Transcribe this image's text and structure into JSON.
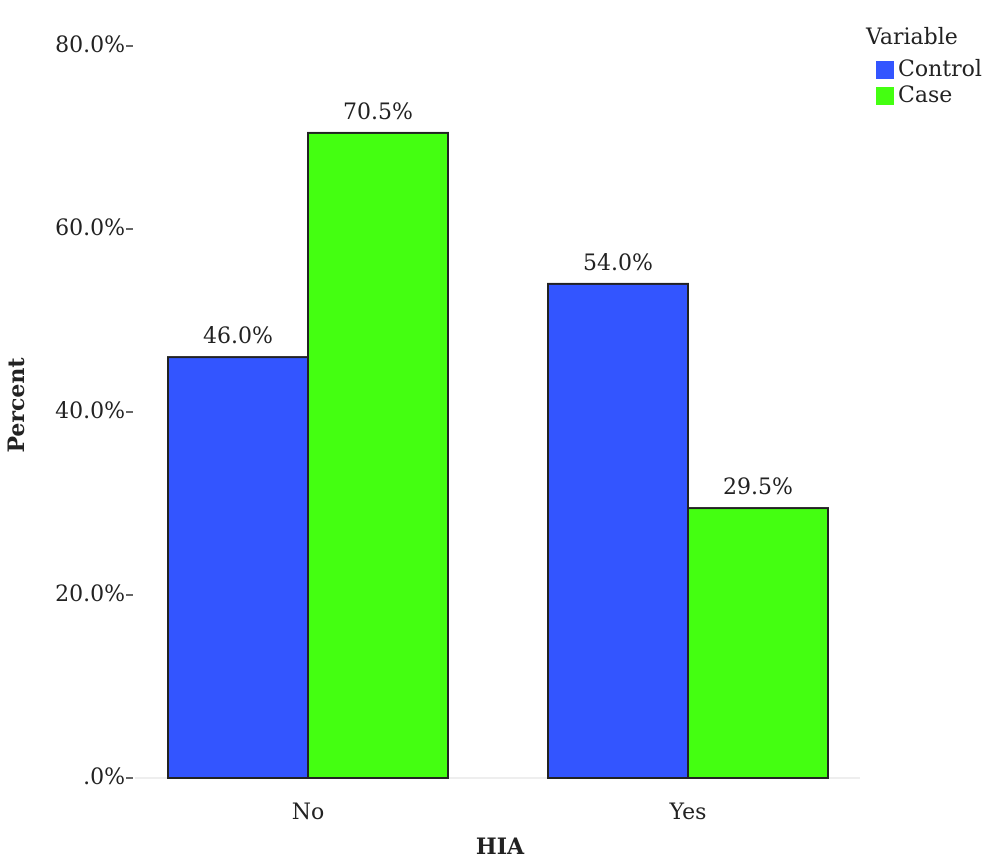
{
  "chart_data": {
    "type": "bar",
    "x_label": "HIA",
    "y_label": "Percent",
    "categories": [
      "No",
      "Yes"
    ],
    "legend_title": "Variable",
    "legend": "top-right",
    "series": [
      {
        "name": "Control",
        "color": "#3355ff",
        "values": [
          46.0,
          54.0
        ],
        "value_labels": [
          "46.0%",
          "54.0%"
        ]
      },
      {
        "name": "Case",
        "color": "#44ff11",
        "values": [
          70.5,
          29.5
        ],
        "value_labels": [
          "70.5%",
          "29.5%"
        ]
      }
    ],
    "ylim": [
      0,
      80
    ],
    "yticks": [
      {
        "value": 0,
        "label": ".0%"
      },
      {
        "value": 20,
        "label": "20.0%"
      },
      {
        "value": 40,
        "label": "40.0%"
      },
      {
        "value": 60,
        "label": "60.0%"
      },
      {
        "value": 80,
        "label": "80.0%"
      }
    ]
  }
}
